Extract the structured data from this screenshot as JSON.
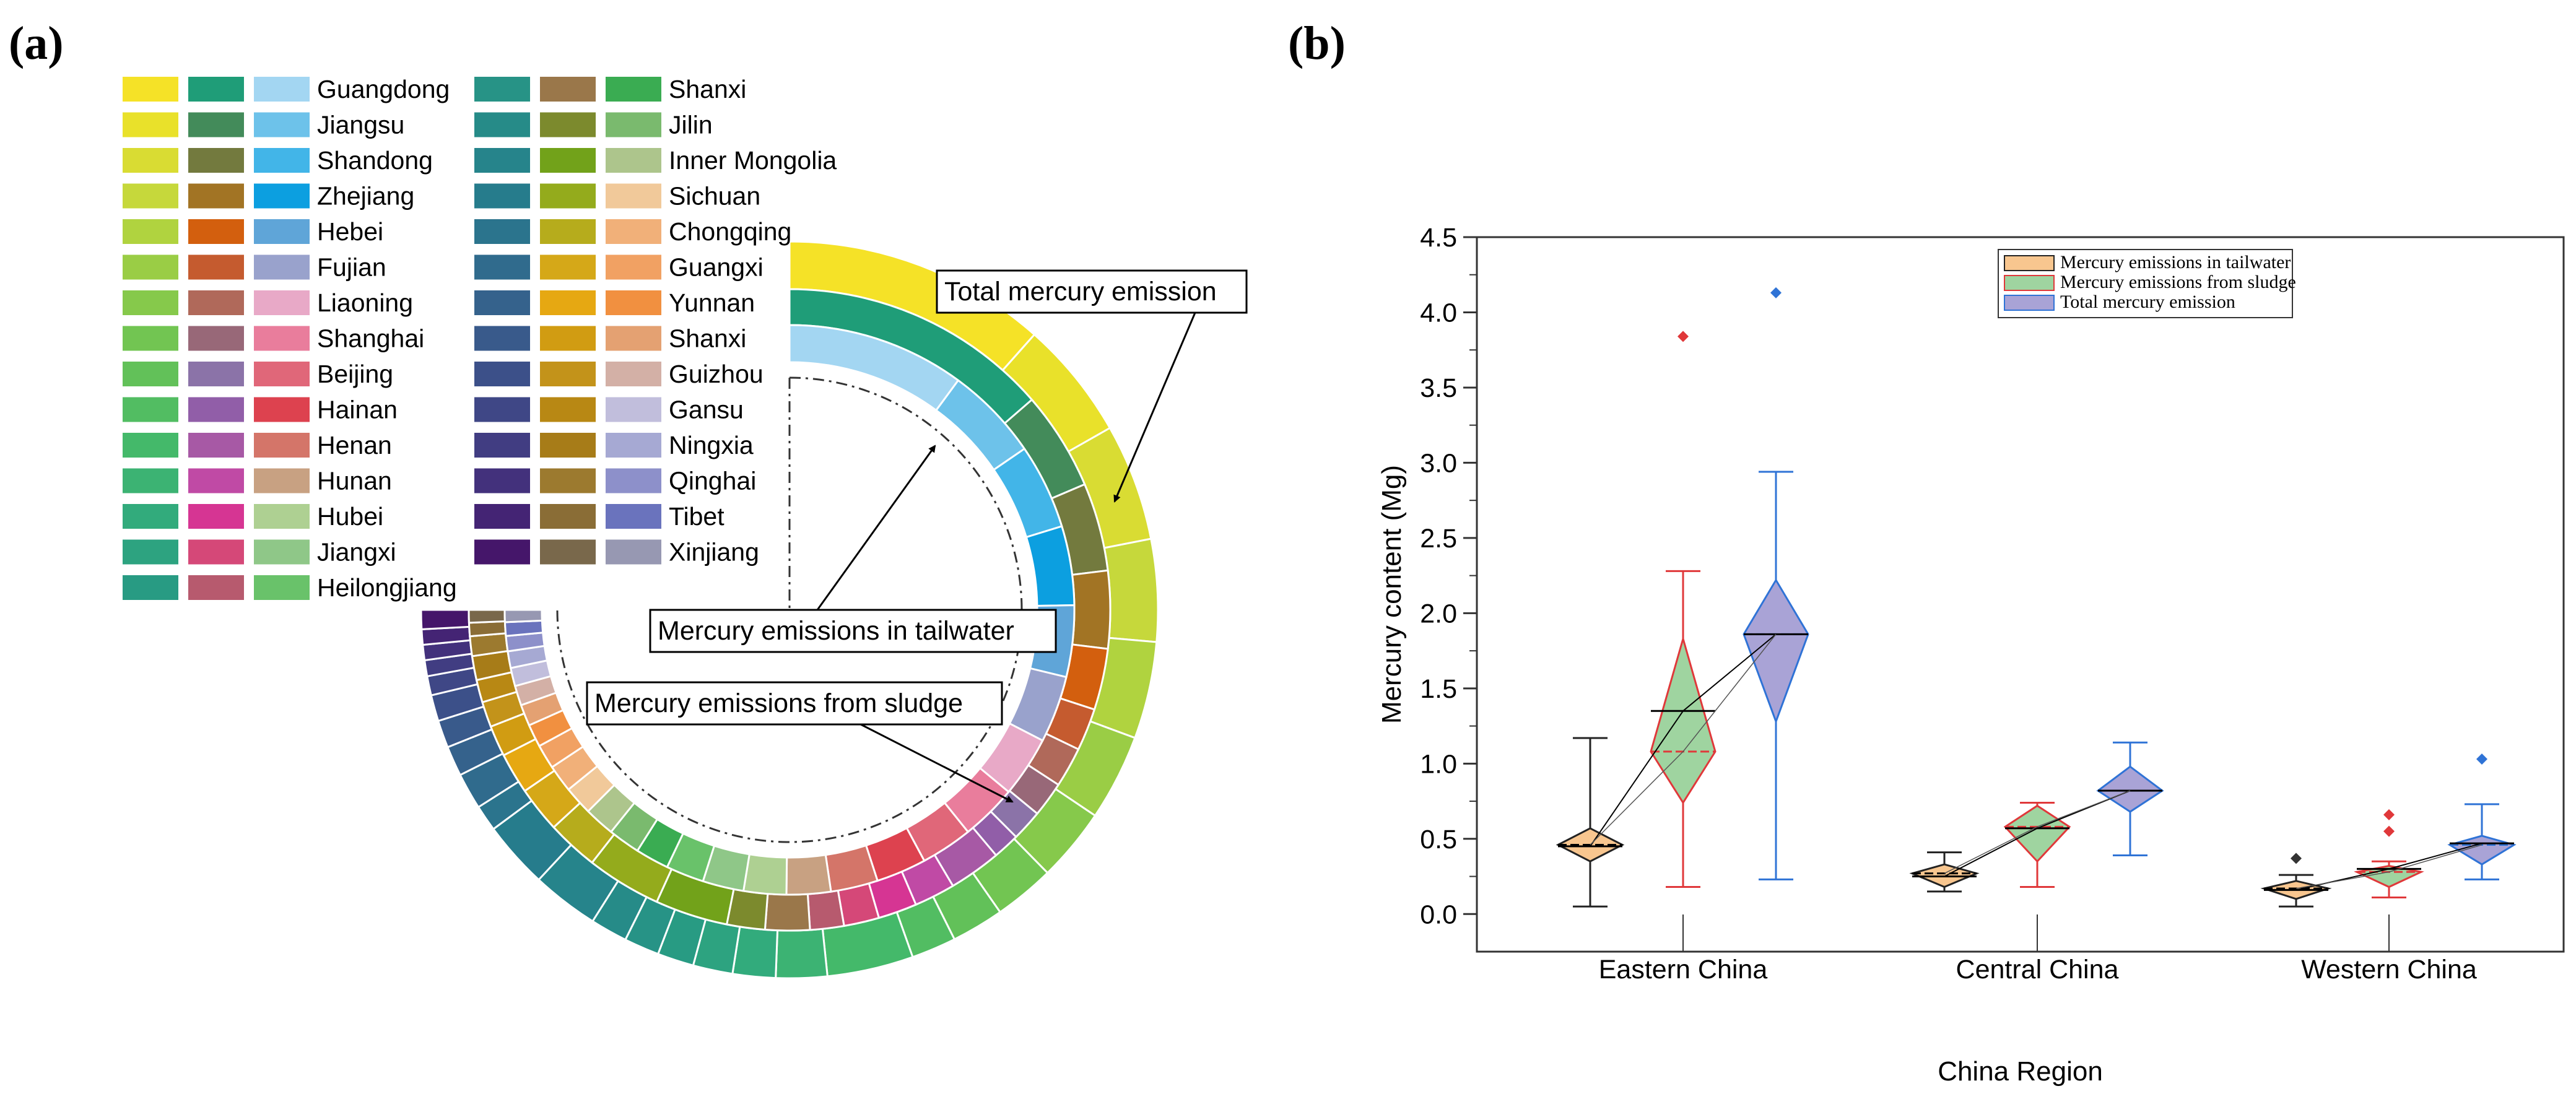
{
  "panels": {
    "a_label": "(a)",
    "b_label": "(b)"
  },
  "chart_data": [
    {
      "type": "donut",
      "id": "a",
      "title": "",
      "rings": {
        "outer": "Total mercury emission",
        "middle": "Mercury emissions from sludge",
        "inner": "Mercury emissions in tailwater"
      },
      "provinces": [
        "Guangdong",
        "Jiangsu",
        "Shandong",
        "Zhejiang",
        "Hebei",
        "Fujian",
        "Liaoning",
        "Shanghai",
        "Beijing",
        "Hainan",
        "Henan",
        "Hunan",
        "Hubei",
        "Jiangxi",
        "Heilongjiang",
        "Shanxi",
        "Jilin",
        "Inner Mongolia",
        "Sichuan",
        "Chongqing",
        "Guangxi",
        "Yunnan",
        "Shanxi",
        "Guizhou",
        "Gansu",
        "Ningxia",
        "Qinghai",
        "Tibet",
        "Xinjiang"
      ],
      "legend_colors": {
        "outer": [
          "#f5e227",
          "#e9e12a",
          "#d9dc33",
          "#c6d83b",
          "#b0d33f",
          "#9acd45",
          "#86c94b",
          "#72c552",
          "#62c159",
          "#52bd62",
          "#44b96a",
          "#3cb373",
          "#32ab7c",
          "#2da380",
          "#289b83",
          "#279386",
          "#268b88",
          "#26848b",
          "#267c8c",
          "#2b748d",
          "#306b8d",
          "#35628c",
          "#395a8b",
          "#3c5089",
          "#3f4786",
          "#413d82",
          "#43317c",
          "#442474",
          "#45166a"
        ],
        "middle": [
          "#1f9d78",
          "#438b5a",
          "#737a3e",
          "#a27424",
          "#d35f0e",
          "#c55b2f",
          "#b0695a",
          "#986878",
          "#8b73a8",
          "#915ea8",
          "#a759a5",
          "#c04aa5",
          "#d63593",
          "#d54878",
          "#b75a6e",
          "#9a774a",
          "#7c8a2d",
          "#72a21a",
          "#94ab1c",
          "#b6ac1c",
          "#d5a818",
          "#e6a812",
          "#d19c12",
          "#c3931a",
          "#b88814",
          "#a77c18",
          "#9c7a2f",
          "#8a6d36",
          "#79684b"
        ],
        "inner": [
          "#a3d6f2",
          "#6dc2ea",
          "#42b5e8",
          "#0c9fe0",
          "#5fa5d8",
          "#99a2cc",
          "#e8a9c7",
          "#e97d9c",
          "#e06779",
          "#dd424f",
          "#d47569",
          "#c8a182",
          "#aed092",
          "#8fc788",
          "#69c26a",
          "#3aac52",
          "#7aba6e",
          "#adc58c",
          "#f1c99a",
          "#f1b079",
          "#f1a163",
          "#f19040",
          "#e4a172",
          "#d3b0a6",
          "#c1bedc",
          "#a6a9d3",
          "#8d90ca",
          "#6a73bd",
          "#9798b2"
        ]
      },
      "legend_columns": 2,
      "start_angle_deg": 0,
      "sweep_deg": 270,
      "total_values": [
        4.13,
        1.86,
        1.83,
        1.6,
        1.52,
        1.35,
        1.15,
        0.95,
        0.82,
        0.7,
        1.35,
        0.8,
        0.67,
        0.62,
        0.57,
        0.55,
        0.58,
        1.05,
        1.05,
        0.41,
        0.57,
        0.47,
        0.43,
        0.41,
        0.3,
        0.25,
        0.24,
        0.24,
        0.3
      ],
      "sludge_values": [
        3.84,
        1.4,
        1.25,
        1.1,
        0.87,
        0.6,
        0.57,
        0.5,
        0.44,
        0.38,
        0.74,
        0.58,
        0.55,
        0.5,
        0.48,
        0.63,
        0.54,
        1.03,
        1.06,
        0.73,
        0.65,
        0.58,
        0.44,
        0.36,
        0.32,
        0.34,
        0.28,
        0.19,
        0.18
      ],
      "tailwater_values": [
        1.17,
        0.62,
        0.56,
        0.52,
        0.47,
        0.44,
        0.4,
        0.37,
        0.34,
        0.33,
        0.31,
        0.29,
        0.28,
        0.27,
        0.25,
        0.22,
        0.21,
        0.2,
        0.19,
        0.18,
        0.16,
        0.15,
        0.14,
        0.13,
        0.12,
        0.11,
        0.1,
        0.09,
        0.08
      ]
    },
    {
      "type": "box-violin",
      "id": "b",
      "title": "",
      "xlabel": "China Region",
      "ylabel": "Mercury content (Mg)",
      "ylim": [
        -0.25,
        4.5
      ],
      "yticks": [
        "0.0",
        "0.5",
        "1.0",
        "1.5",
        "2.0",
        "2.5",
        "3.0",
        "3.5",
        "4.0",
        "4.5"
      ],
      "yticks_values": [
        0,
        0.5,
        1,
        1.5,
        2,
        2.5,
        3,
        3.5,
        4,
        4.5
      ],
      "categories": [
        "Eastern China",
        "Central China",
        "Western China"
      ],
      "series": [
        {
          "name": "Mercury emissions in tailwater",
          "fill": "#f8c68f",
          "stroke": "#222222",
          "median_line": "#000000",
          "stats": [
            {
              "min": 0.05,
              "q1": 0.35,
              "median": 0.46,
              "q3": 0.57,
              "max": 1.17,
              "mean": 0.45,
              "outliers": []
            },
            {
              "min": 0.15,
              "q1": 0.18,
              "median": 0.27,
              "q3": 0.33,
              "max": 0.41,
              "mean": 0.25,
              "outliers": []
            },
            {
              "min": 0.05,
              "q1": 0.1,
              "median": 0.17,
              "q3": 0.22,
              "max": 0.26,
              "mean": 0.16,
              "outliers": [
                0.37
              ]
            }
          ]
        },
        {
          "name": "Mercury emissions from sludge",
          "fill": "#9fd4a0",
          "stroke": "#e0383a",
          "median_line": "#e0383a",
          "stats": [
            {
              "min": 0.18,
              "q1": 0.74,
              "median": 1.08,
              "q3": 1.83,
              "max": 2.28,
              "mean": 1.35,
              "outliers": [
                3.84
              ]
            },
            {
              "min": 0.18,
              "q1": 0.35,
              "median": 0.58,
              "q3": 0.72,
              "max": 0.74,
              "mean": 0.57,
              "outliers": []
            },
            {
              "min": 0.11,
              "q1": 0.18,
              "median": 0.28,
              "q3": 0.32,
              "max": 0.35,
              "mean": 0.3,
              "outliers": [
                0.55,
                0.66
              ]
            }
          ]
        },
        {
          "name": "Total mercury emission",
          "fill": "#a9a3d6",
          "stroke": "#2f73d6",
          "median_line": "#2f73d6",
          "stats": [
            {
              "min": 0.23,
              "q1": 1.28,
              "median": 1.86,
              "q3": 2.22,
              "max": 2.94,
              "mean": 1.86,
              "outliers": [
                4.13
              ]
            },
            {
              "min": 0.39,
              "q1": 0.68,
              "median": 0.82,
              "q3": 0.98,
              "max": 1.14,
              "mean": 0.82,
              "outliers": []
            },
            {
              "min": 0.23,
              "q1": 0.33,
              "median": 0.46,
              "q3": 0.52,
              "max": 0.73,
              "mean": 0.47,
              "outliers": [
                1.03
              ]
            }
          ]
        }
      ],
      "legend_position": "top-right"
    }
  ]
}
